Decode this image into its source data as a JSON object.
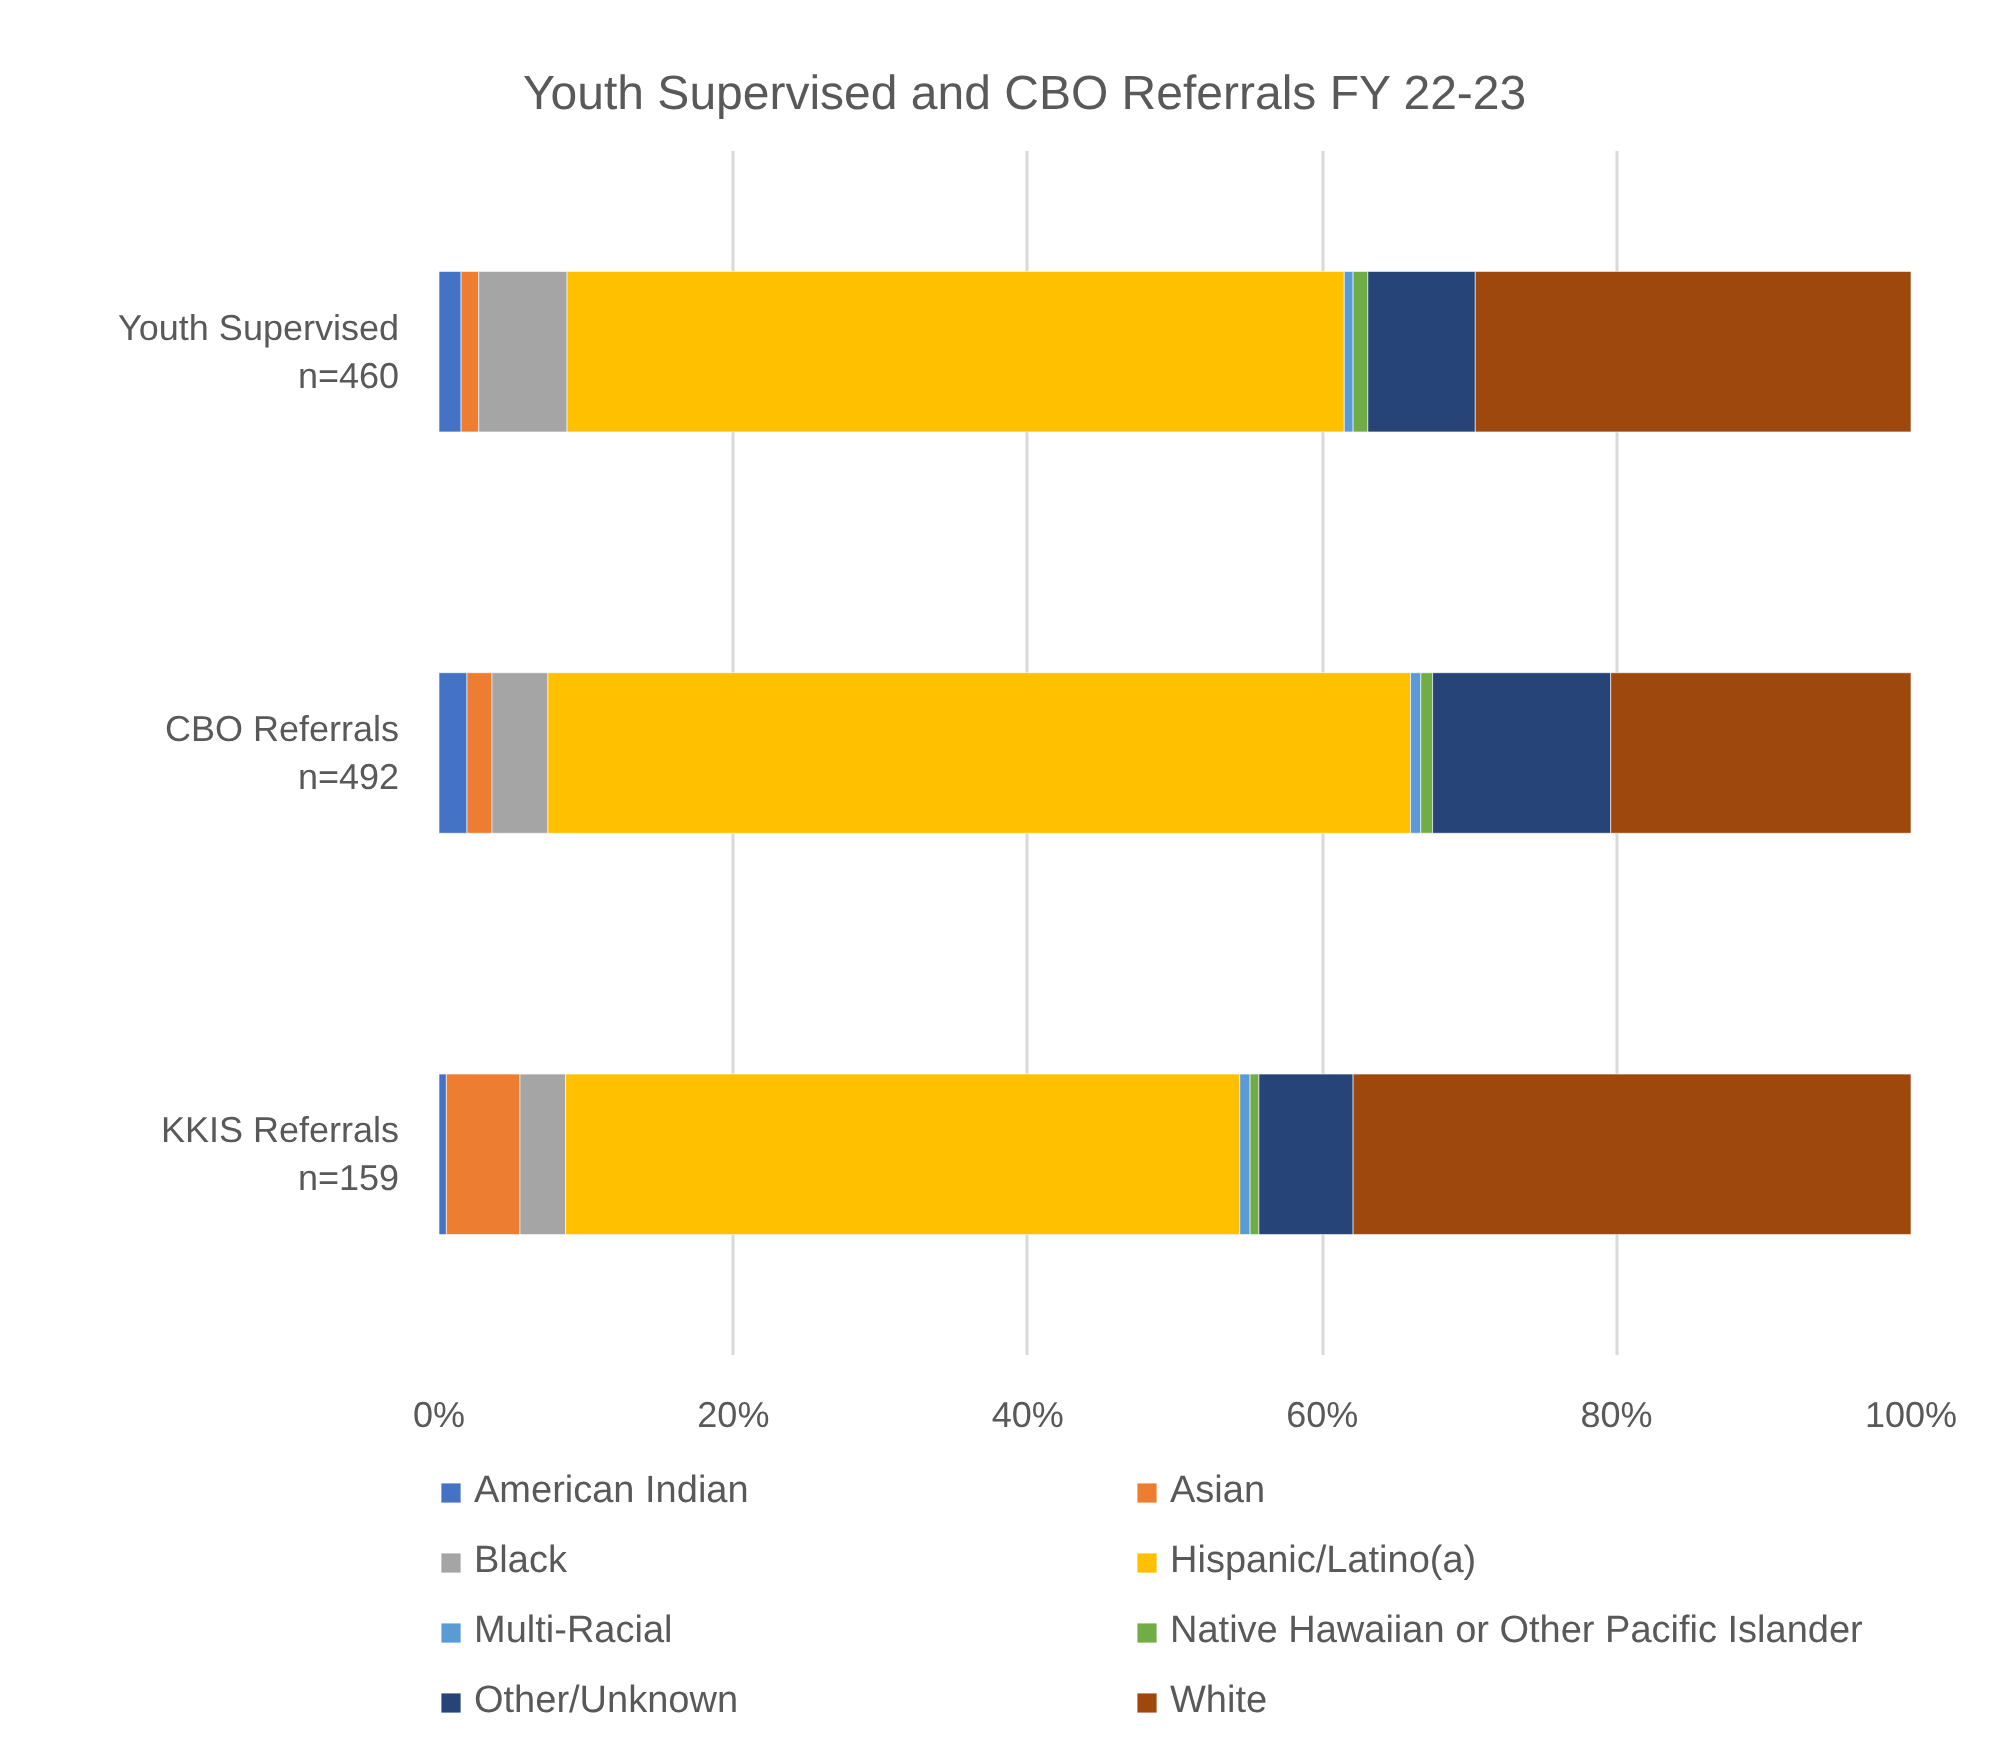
{
  "chart_data": {
    "type": "bar",
    "orientation": "horizontal",
    "stacked": true,
    "title": "Youth Supervised and CBO Referrals FY 22-23",
    "categories": [
      "Youth Supervised\nn=460",
      "CBO Referrals\nn=492",
      "KKIS Referrals\nn=159"
    ],
    "series": [
      {
        "name": "American Indian",
        "color": "#4472c4",
        "values": [
          1.5,
          1.9,
          0.5
        ]
      },
      {
        "name": "Asian",
        "color": "#ed7d31",
        "values": [
          1.2,
          1.7,
          5.0
        ]
      },
      {
        "name": "Black",
        "color": "#a5a5a5",
        "values": [
          6.0,
          3.8,
          3.1
        ]
      },
      {
        "name": "Hispanic/Latino(a)",
        "color": "#ffc000",
        "values": [
          52.8,
          58.6,
          45.8
        ]
      },
      {
        "name": "Multi-Racial",
        "color": "#5b9bd5",
        "values": [
          0.6,
          0.7,
          0.7
        ]
      },
      {
        "name": "Native Hawaiian or Other Pacific Islander",
        "color": "#70ad47",
        "values": [
          1.0,
          0.8,
          0.6
        ]
      },
      {
        "name": "Other/Unknown",
        "color": "#264478",
        "values": [
          7.3,
          12.1,
          6.4
        ]
      },
      {
        "name": "White",
        "color": "#9e480e",
        "values": [
          29.6,
          20.4,
          37.9
        ]
      }
    ],
    "xlim": [
      0,
      100
    ],
    "xticks": [
      {
        "value": 0,
        "label": "0%"
      },
      {
        "value": 20,
        "label": "20%"
      },
      {
        "value": 40,
        "label": "40%"
      },
      {
        "value": 60,
        "label": "60%"
      },
      {
        "value": 80,
        "label": "80%"
      },
      {
        "value": 100,
        "label": "100%"
      }
    ],
    "grid": "x",
    "legend": "bottom"
  }
}
